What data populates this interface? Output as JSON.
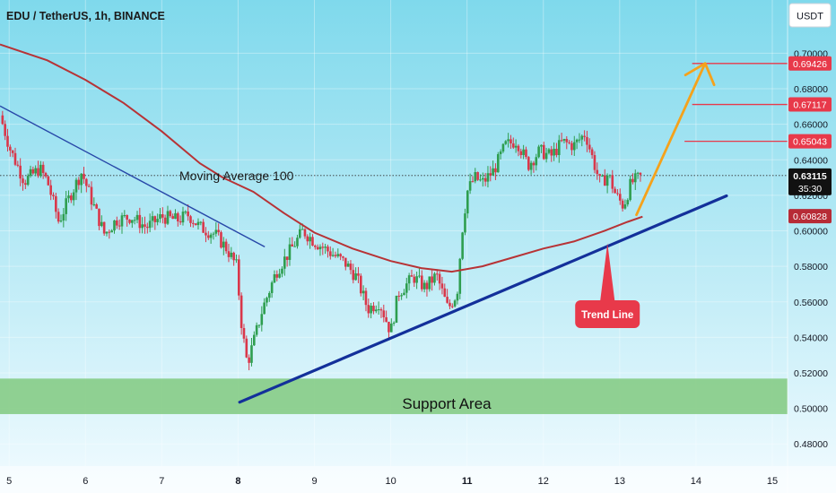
{
  "colors": {
    "bg_top": "#7fd9ec",
    "bg_bottom": "#f2fbff",
    "up": "#2e9e4f",
    "down": "#d9374a",
    "ma": "#b73336",
    "trend": "#13309a",
    "downtrend": "#2747a8",
    "arrow": "#f5a21b",
    "support_fill": "#86cc86",
    "badge_red": "#e8394a",
    "badge_dark_red": "#b72b36",
    "badge_black": "#111111"
  },
  "header": {
    "symbol": "EDU / TetherUS, 1h, BINANCE",
    "currency": "USDT"
  },
  "annotations": {
    "ma_label": "Moving Average 100",
    "support_label": "Support Area",
    "trend_label": "Trend Line",
    "current_price": "0.63115",
    "countdown": "35:30"
  },
  "chart_data": {
    "type": "candlestick",
    "title": "EDU / TetherUS, 1h, BINANCE",
    "x_ticks": [
      "5",
      "6",
      "7",
      "8",
      "9",
      "10",
      "11",
      "12",
      "13",
      "14",
      "15"
    ],
    "x_tick_values": [
      5,
      6,
      7,
      8,
      9,
      10,
      11,
      12,
      13,
      14,
      15
    ],
    "bold_ticks": [
      "8",
      "11"
    ],
    "y_ticks": [
      "0.48000",
      "0.50000",
      "0.52000",
      "0.54000",
      "0.56000",
      "0.58000",
      "0.60000",
      "0.62000",
      "0.64000",
      "0.66000",
      "0.68000",
      "0.70000"
    ],
    "y_tick_values": [
      0.48,
      0.5,
      0.52,
      0.54,
      0.56,
      0.58,
      0.6,
      0.62,
      0.64,
      0.66,
      0.68,
      0.7
    ],
    "xlim": [
      4.88,
      15.2
    ],
    "ylim": [
      0.4675,
      0.73
    ],
    "price_levels": [
      {
        "label": "0.69426",
        "value": 0.69426,
        "line_from": 13.95,
        "style": "red"
      },
      {
        "label": "0.67117",
        "value": 0.67117,
        "line_from": 13.95,
        "style": "red"
      },
      {
        "label": "0.65043",
        "value": 0.65043,
        "line_from": 13.85,
        "style": "red"
      },
      {
        "label": "0.60828",
        "value": 0.60828,
        "line_from": null,
        "style": "darkred"
      }
    ],
    "support_zone": [
      0.4968,
      0.5168
    ],
    "trend_line": [
      [
        8.02,
        0.5035
      ],
      [
        14.4,
        0.6197
      ]
    ],
    "downtrend_line": [
      [
        4.88,
        0.6703
      ],
      [
        8.35,
        0.591
      ]
    ],
    "ma_line": [
      [
        4.88,
        0.705
      ],
      [
        5.5,
        0.696
      ],
      [
        6.0,
        0.685
      ],
      [
        6.5,
        0.672
      ],
      [
        7.0,
        0.656
      ],
      [
        7.5,
        0.638
      ],
      [
        7.8,
        0.63
      ],
      [
        8.2,
        0.622
      ],
      [
        8.6,
        0.61
      ],
      [
        9.0,
        0.599
      ],
      [
        9.5,
        0.59
      ],
      [
        10.0,
        0.583
      ],
      [
        10.4,
        0.579
      ],
      [
        10.8,
        0.577
      ],
      [
        11.2,
        0.58
      ],
      [
        11.6,
        0.585
      ],
      [
        12.0,
        0.59
      ],
      [
        12.4,
        0.594
      ],
      [
        12.8,
        0.6
      ],
      [
        13.1,
        0.605
      ],
      [
        13.3,
        0.608
      ]
    ],
    "projection_arrow": [
      [
        13.22,
        0.609
      ],
      [
        14.12,
        0.6943
      ]
    ],
    "callout_anchor": [
      12.84,
      0.593
    ],
    "close_path": [
      [
        4.88,
        0.665
      ],
      [
        5.02,
        0.645
      ],
      [
        5.2,
        0.628
      ],
      [
        5.4,
        0.635
      ],
      [
        5.5,
        0.628
      ],
      [
        5.65,
        0.605
      ],
      [
        5.8,
        0.62
      ],
      [
        5.95,
        0.633
      ],
      [
        6.1,
        0.615
      ],
      [
        6.25,
        0.598
      ],
      [
        6.4,
        0.606
      ],
      [
        6.6,
        0.608
      ],
      [
        6.8,
        0.602
      ],
      [
        7.0,
        0.608
      ],
      [
        7.2,
        0.606
      ],
      [
        7.35,
        0.609
      ],
      [
        7.5,
        0.602
      ],
      [
        7.7,
        0.598
      ],
      [
        7.85,
        0.59
      ],
      [
        7.98,
        0.58
      ],
      [
        8.05,
        0.545
      ],
      [
        8.12,
        0.525
      ],
      [
        8.22,
        0.54
      ],
      [
        8.32,
        0.556
      ],
      [
        8.5,
        0.577
      ],
      [
        8.7,
        0.59
      ],
      [
        8.85,
        0.6
      ],
      [
        9.0,
        0.594
      ],
      [
        9.2,
        0.588
      ],
      [
        9.4,
        0.582
      ],
      [
        9.55,
        0.574
      ],
      [
        9.7,
        0.556
      ],
      [
        9.85,
        0.56
      ],
      [
        10.0,
        0.543
      ],
      [
        10.1,
        0.565
      ],
      [
        10.3,
        0.574
      ],
      [
        10.45,
        0.568
      ],
      [
        10.6,
        0.575
      ],
      [
        10.75,
        0.556
      ],
      [
        10.87,
        0.565
      ],
      [
        10.93,
        0.598
      ],
      [
        11.0,
        0.622
      ],
      [
        11.1,
        0.63
      ],
      [
        11.2,
        0.627
      ],
      [
        11.35,
        0.634
      ],
      [
        11.5,
        0.648
      ],
      [
        11.65,
        0.651
      ],
      [
        11.8,
        0.637
      ],
      [
        11.95,
        0.645
      ],
      [
        12.1,
        0.642
      ],
      [
        12.25,
        0.65
      ],
      [
        12.4,
        0.648
      ],
      [
        12.55,
        0.655
      ],
      [
        12.65,
        0.64
      ],
      [
        12.75,
        0.626
      ],
      [
        12.85,
        0.632
      ],
      [
        12.95,
        0.62
      ],
      [
        13.05,
        0.614
      ],
      [
        13.15,
        0.627
      ],
      [
        13.3,
        0.631
      ]
    ]
  }
}
